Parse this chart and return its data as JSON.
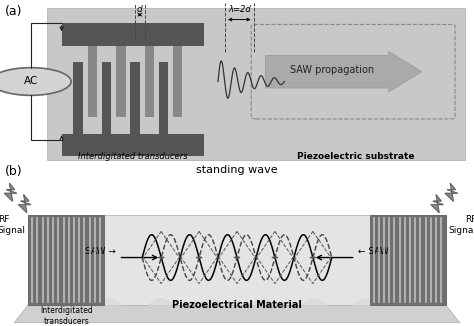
{
  "bg_color": "#ffffff",
  "panel_a_bg": "#c8c8c8",
  "idt_dark": "#555555",
  "idt_medium": "#888888",
  "text_color": "#000000",
  "label_a": "(a)",
  "label_b": "(b)",
  "text_idt": "Interdigitated transducers",
  "text_piezo_a": "Piezoelectric substrate",
  "text_saw": "SAW propagation",
  "text_standing": "standing wave",
  "text_piezo_b": "Piezoelectrical Material",
  "text_idt_b": "Interdigitated\ntransducers",
  "text_rf_left": "RF\nSignal",
  "text_rf_right": "RF\nSignal",
  "text_saw_right": "SAW →",
  "text_saw_left": "← SAW",
  "text_ac": "AC",
  "text_lambda": "λ=2d",
  "text_d": "d"
}
